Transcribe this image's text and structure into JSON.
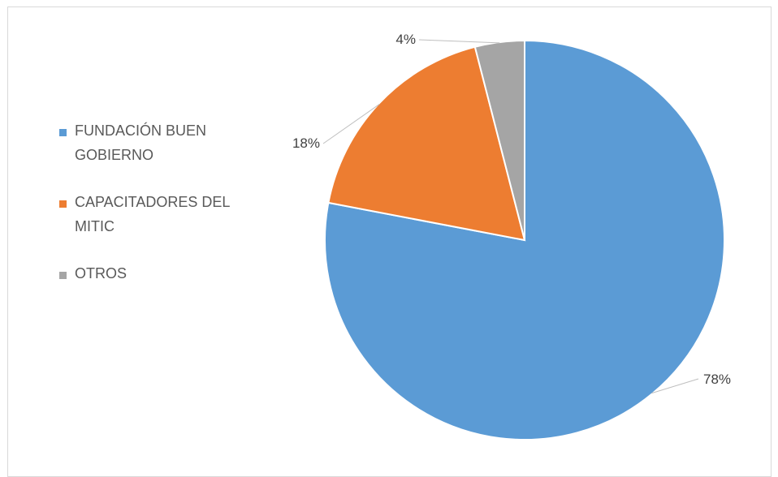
{
  "chart_data": {
    "type": "pie",
    "categories": [
      "FUNDACIÓN BUEN GOBIERNO",
      "CAPACITADORES DEL MITIC",
      "OTROS"
    ],
    "values": [
      78,
      18,
      4
    ],
    "data_labels": [
      "78%",
      "18%",
      "4%"
    ],
    "colors": [
      "#5b9bd5",
      "#ed7d31",
      "#a5a5a5"
    ],
    "legend_position": "left"
  }
}
